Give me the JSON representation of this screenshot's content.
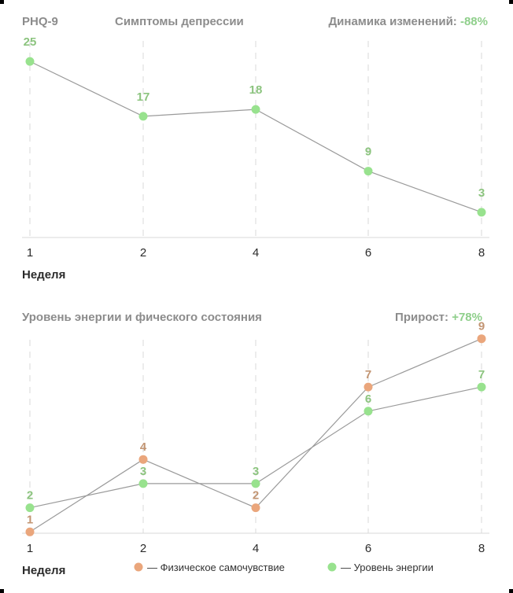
{
  "colors": {
    "energy": "#98e28e",
    "energy_label": "#8cc47f",
    "physical": "#eaa67c",
    "physical_label": "#c29573",
    "line": "#9a9a9a",
    "grid": "#d8d8d8"
  },
  "chart_data": [
    {
      "type": "line",
      "left_header": "PHQ-9",
      "title": "Симптомы депрессии",
      "change_label": "Динамика изменений:",
      "change_value": "-88%",
      "xlabel": "Неделя",
      "categories": [
        "1",
        "2",
        "4",
        "6",
        "8"
      ],
      "ylim": [
        0,
        28
      ],
      "series": [
        {
          "key": "energy",
          "values": [
            25,
            17,
            18,
            9,
            3
          ]
        }
      ]
    },
    {
      "type": "line",
      "title": "Уровень энергии  и фического состояния",
      "change_label": "Прирост:",
      "change_value": "+78%",
      "xlabel": "Неделя",
      "categories": [
        "1",
        "2",
        "4",
        "6",
        "8"
      ],
      "ylim": [
        0,
        10
      ],
      "legend_position": "bottom",
      "series": [
        {
          "key": "physical",
          "name": "— Физическое самочувствие",
          "values": [
            1,
            4,
            2,
            7,
            9
          ]
        },
        {
          "key": "energy",
          "name": "— Уровень энергии",
          "values": [
            2,
            3,
            3,
            6,
            7
          ]
        }
      ]
    }
  ]
}
